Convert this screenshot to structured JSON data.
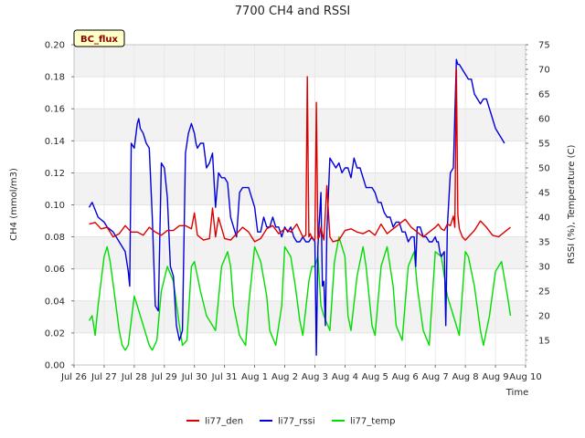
{
  "chart_data": {
    "type": "line",
    "title": "7700 CH4 and RSSI",
    "xlabel": "Time",
    "ylabel_left": "CH4 (mmol/m3)",
    "ylabel_right": "RSSI (%), Temperature (C)",
    "badge": "BC_flux",
    "xlim": [
      0,
      15
    ],
    "ylim_left": [
      0.0,
      0.2
    ],
    "ylim_right": [
      10,
      75
    ],
    "x_ticks": [
      {
        "v": 0,
        "label": "Jul 26"
      },
      {
        "v": 1,
        "label": "Jul 27"
      },
      {
        "v": 2,
        "label": "Jul 28"
      },
      {
        "v": 3,
        "label": "Jul 29"
      },
      {
        "v": 4,
        "label": "Jul 30"
      },
      {
        "v": 5,
        "label": "Jul 31"
      },
      {
        "v": 6,
        "label": "Aug 1"
      },
      {
        "v": 7,
        "label": "Aug 2"
      },
      {
        "v": 8,
        "label": "Aug 3"
      },
      {
        "v": 9,
        "label": "Aug 4"
      },
      {
        "v": 10,
        "label": "Aug 5"
      },
      {
        "v": 11,
        "label": "Aug 6"
      },
      {
        "v": 12,
        "label": "Aug 7"
      },
      {
        "v": 13,
        "label": "Aug 8"
      },
      {
        "v": 14,
        "label": "Aug 9"
      },
      {
        "v": 15,
        "label": "Aug 10"
      }
    ],
    "y_ticks_left": [
      {
        "v": 0.0,
        "label": "0.00"
      },
      {
        "v": 0.02,
        "label": "0.02"
      },
      {
        "v": 0.04,
        "label": "0.04"
      },
      {
        "v": 0.06,
        "label": "0.06"
      },
      {
        "v": 0.08,
        "label": "0.08"
      },
      {
        "v": 0.1,
        "label": "0.10"
      },
      {
        "v": 0.12,
        "label": "0.12"
      },
      {
        "v": 0.14,
        "label": "0.14"
      },
      {
        "v": 0.16,
        "label": "0.16"
      },
      {
        "v": 0.18,
        "label": "0.18"
      },
      {
        "v": 0.2,
        "label": "0.20"
      }
    ],
    "y_ticks_right": [
      {
        "v": 15,
        "label": "15"
      },
      {
        "v": 20,
        "label": "20"
      },
      {
        "v": 25,
        "label": "25"
      },
      {
        "v": 30,
        "label": "30"
      },
      {
        "v": 35,
        "label": "35"
      },
      {
        "v": 40,
        "label": "40"
      },
      {
        "v": 45,
        "label": "45"
      },
      {
        "v": 50,
        "label": "50"
      },
      {
        "v": 55,
        "label": "55"
      },
      {
        "v": 60,
        "label": "60"
      },
      {
        "v": 65,
        "label": "65"
      },
      {
        "v": 70,
        "label": "70"
      },
      {
        "v": 75,
        "label": "75"
      }
    ],
    "series": [
      {
        "name": "li77_den",
        "axis": "left",
        "color": "#dd0000",
        "x": [
          0.5,
          0.7,
          0.9,
          1.1,
          1.3,
          1.5,
          1.7,
          1.9,
          2.1,
          2.3,
          2.5,
          2.7,
          2.9,
          3.1,
          3.3,
          3.5,
          3.7,
          3.9,
          4.0,
          4.1,
          4.3,
          4.5,
          4.6,
          4.7,
          4.8,
          5.0,
          5.2,
          5.4,
          5.6,
          5.8,
          6.0,
          6.2,
          6.4,
          6.6,
          6.8,
          7.0,
          7.2,
          7.4,
          7.6,
          7.7,
          7.75,
          7.8,
          7.85,
          7.9,
          8.0,
          8.05,
          8.1,
          8.15,
          8.2,
          8.3,
          8.4,
          8.5,
          8.6,
          8.8,
          9.0,
          9.2,
          9.4,
          9.6,
          9.8,
          10.0,
          10.2,
          10.4,
          10.6,
          10.8,
          11.0,
          11.2,
          11.4,
          11.6,
          11.8,
          12.0,
          12.1,
          12.2,
          12.3,
          12.4,
          12.5,
          12.6,
          12.65,
          12.7,
          12.75,
          12.8,
          12.9,
          13.0,
          13.1,
          13.3,
          13.5,
          13.7,
          13.9,
          14.1,
          14.3,
          14.5
        ],
        "y": [
          0.088,
          0.089,
          0.085,
          0.086,
          0.08,
          0.082,
          0.087,
          0.083,
          0.083,
          0.081,
          0.086,
          0.083,
          0.081,
          0.084,
          0.084,
          0.087,
          0.087,
          0.085,
          0.095,
          0.081,
          0.078,
          0.079,
          0.098,
          0.08,
          0.092,
          0.079,
          0.078,
          0.082,
          0.086,
          0.083,
          0.077,
          0.079,
          0.085,
          0.087,
          0.082,
          0.085,
          0.083,
          0.088,
          0.08,
          0.081,
          0.18,
          0.08,
          0.082,
          0.079,
          0.078,
          0.164,
          0.079,
          0.08,
          0.086,
          0.078,
          0.112,
          0.08,
          0.077,
          0.078,
          0.084,
          0.085,
          0.083,
          0.082,
          0.084,
          0.081,
          0.088,
          0.082,
          0.085,
          0.088,
          0.091,
          0.086,
          0.083,
          0.08,
          0.083,
          0.086,
          0.088,
          0.085,
          0.084,
          0.088,
          0.087,
          0.093,
          0.086,
          0.185,
          0.094,
          0.085,
          0.08,
          0.078,
          0.08,
          0.084,
          0.09,
          0.086,
          0.081,
          0.08,
          0.083,
          0.086
        ]
      },
      {
        "name": "li77_rssi",
        "axis": "right",
        "color": "#0000dd",
        "x": [
          0.5,
          0.6,
          0.8,
          1.0,
          1.1,
          1.3,
          1.5,
          1.7,
          1.8,
          1.85,
          1.9,
          2.0,
          2.1,
          2.15,
          2.2,
          2.3,
          2.4,
          2.5,
          2.6,
          2.7,
          2.8,
          2.9,
          3.0,
          3.1,
          3.2,
          3.3,
          3.4,
          3.5,
          3.6,
          3.7,
          3.8,
          3.9,
          4.0,
          4.05,
          4.1,
          4.2,
          4.3,
          4.4,
          4.5,
          4.6,
          4.7,
          4.8,
          4.9,
          5.0,
          5.1,
          5.2,
          5.3,
          5.4,
          5.5,
          5.6,
          5.7,
          5.8,
          5.9,
          6.0,
          6.1,
          6.2,
          6.3,
          6.4,
          6.5,
          6.6,
          6.7,
          6.8,
          6.9,
          7.0,
          7.1,
          7.2,
          7.3,
          7.4,
          7.5,
          7.6,
          7.7,
          7.8,
          7.9,
          8.0,
          8.05,
          8.1,
          8.2,
          8.25,
          8.3,
          8.35,
          8.4,
          8.5,
          8.6,
          8.7,
          8.8,
          8.9,
          9.0,
          9.1,
          9.2,
          9.3,
          9.4,
          9.5,
          9.6,
          9.7,
          9.8,
          9.9,
          10.0,
          10.1,
          10.2,
          10.3,
          10.4,
          10.5,
          10.6,
          10.7,
          10.8,
          10.9,
          11.0,
          11.1,
          11.2,
          11.3,
          11.35,
          11.4,
          11.5,
          11.6,
          11.7,
          11.8,
          11.9,
          12.0,
          12.05,
          12.1,
          12.15,
          12.2,
          12.3,
          12.35,
          12.4,
          12.5,
          12.6,
          12.7,
          12.75,
          12.8,
          12.9,
          13.0,
          13.1,
          13.2,
          13.3,
          13.4,
          13.5,
          13.6,
          13.7,
          13.8,
          13.9,
          14.0,
          14.1,
          14.2,
          14.3
        ],
        "y": [
          42,
          43,
          40,
          39,
          38,
          37,
          35,
          33,
          29,
          26,
          55,
          54,
          59,
          60,
          58,
          57,
          55,
          54,
          40,
          22,
          21,
          51,
          50,
          44,
          30,
          28,
          18,
          15,
          17,
          53,
          57,
          59,
          57,
          55,
          54,
          55,
          55,
          50,
          51,
          53,
          42,
          49,
          48,
          48,
          47,
          40,
          38,
          36,
          45,
          46,
          46,
          46,
          44,
          42,
          37,
          37,
          40,
          38,
          38,
          40,
          38,
          38,
          36,
          38,
          37,
          38,
          36,
          35,
          35,
          36,
          35,
          35,
          36,
          35,
          12,
          34,
          45,
          26,
          27,
          18,
          37,
          52,
          51,
          50,
          51,
          49,
          50,
          50,
          48,
          52,
          50,
          50,
          48,
          46,
          46,
          46,
          45,
          43,
          43,
          41,
          40,
          40,
          38,
          39,
          39,
          37,
          37,
          35,
          36,
          36,
          30,
          38,
          38,
          36,
          36,
          35,
          35,
          36,
          35,
          35,
          33,
          32,
          33,
          18,
          38,
          49,
          50,
          72,
          71,
          71,
          70,
          69,
          68,
          68,
          65,
          64,
          63,
          64,
          64,
          62,
          60,
          58,
          57,
          56,
          55
        ]
      },
      {
        "name": "li77_temp",
        "axis": "right",
        "color": "#00dd00",
        "x": [
          0.5,
          0.6,
          0.7,
          0.8,
          1.0,
          1.1,
          1.2,
          1.35,
          1.5,
          1.6,
          1.7,
          1.8,
          2.0,
          2.2,
          2.4,
          2.5,
          2.6,
          2.75,
          2.9,
          3.1,
          3.3,
          3.5,
          3.6,
          3.75,
          3.9,
          4.0,
          4.2,
          4.4,
          4.6,
          4.7,
          4.9,
          5.1,
          5.2,
          5.3,
          5.5,
          5.7,
          5.8,
          6.0,
          6.2,
          6.4,
          6.5,
          6.7,
          6.9,
          7.0,
          7.2,
          7.35,
          7.5,
          7.6,
          7.8,
          7.9,
          8.0,
          8.1,
          8.2,
          8.3,
          8.5,
          8.65,
          8.8,
          9.0,
          9.1,
          9.2,
          9.4,
          9.6,
          9.7,
          9.9,
          10.0,
          10.2,
          10.4,
          10.6,
          10.7,
          10.9,
          11.1,
          11.3,
          11.4,
          11.6,
          11.8,
          12.0,
          12.2,
          12.4,
          12.6,
          12.8,
          13.0,
          13.1,
          13.3,
          13.5,
          13.6,
          13.8,
          14.0,
          14.2,
          14.4,
          14.5
        ],
        "y": [
          19,
          20,
          16,
          22,
          32,
          34,
          31,
          24,
          17,
          14,
          13,
          14,
          24,
          20,
          16,
          14,
          13,
          15,
          25,
          30,
          27,
          18,
          14,
          15,
          30,
          31,
          25,
          20,
          18,
          17,
          30,
          33,
          30,
          22,
          16,
          14,
          22,
          34,
          31,
          24,
          17,
          14,
          22,
          34,
          32,
          26,
          19,
          16,
          27,
          30,
          30,
          32,
          22,
          20,
          17,
          31,
          36,
          32,
          20,
          17,
          28,
          34,
          30,
          18,
          16,
          30,
          34,
          26,
          18,
          15,
          30,
          33,
          26,
          17,
          14,
          33,
          32,
          24,
          20,
          16,
          33,
          32,
          26,
          17,
          14,
          20,
          29,
          31,
          24,
          20
        ]
      }
    ],
    "legend": [
      "li77_den",
      "li77_rssi",
      "li77_temp"
    ],
    "grid": true,
    "legend_placement": "bottom-center"
  }
}
